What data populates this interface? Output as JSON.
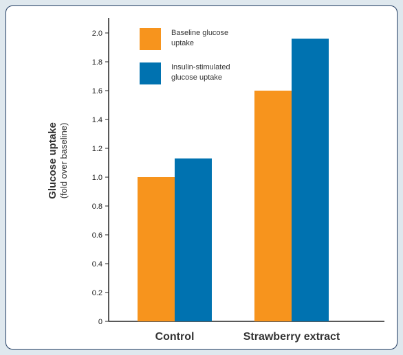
{
  "chart_data": {
    "type": "bar",
    "title": "",
    "xlabel": "",
    "ylabel": "Glucose uptake",
    "ylabel_sub": "(fold over baseline)",
    "ylim": [
      0,
      2.0
    ],
    "yticks": [
      "0",
      "0.2",
      "0.4",
      "0.6",
      "0.8",
      "1.0",
      "1.2",
      "1.4",
      "1.6",
      "1.8",
      "2.0"
    ],
    "categories": [
      "Control",
      "Strawberry extract"
    ],
    "series": [
      {
        "name": "Baseline glucose uptake",
        "values": [
          1.0,
          1.6
        ],
        "color": "#f7941d"
      },
      {
        "name": "Insulin-stimulated glucose uptake",
        "values": [
          1.13,
          1.96
        ],
        "color": "#0072b0"
      }
    ],
    "legend": {
      "position": "top-left",
      "entries": [
        {
          "line1": "Baseline glucose",
          "line2": "uptake"
        },
        {
          "line1": "Insulin-stimulated",
          "line2": "glucose uptake"
        }
      ]
    },
    "grid": false
  }
}
